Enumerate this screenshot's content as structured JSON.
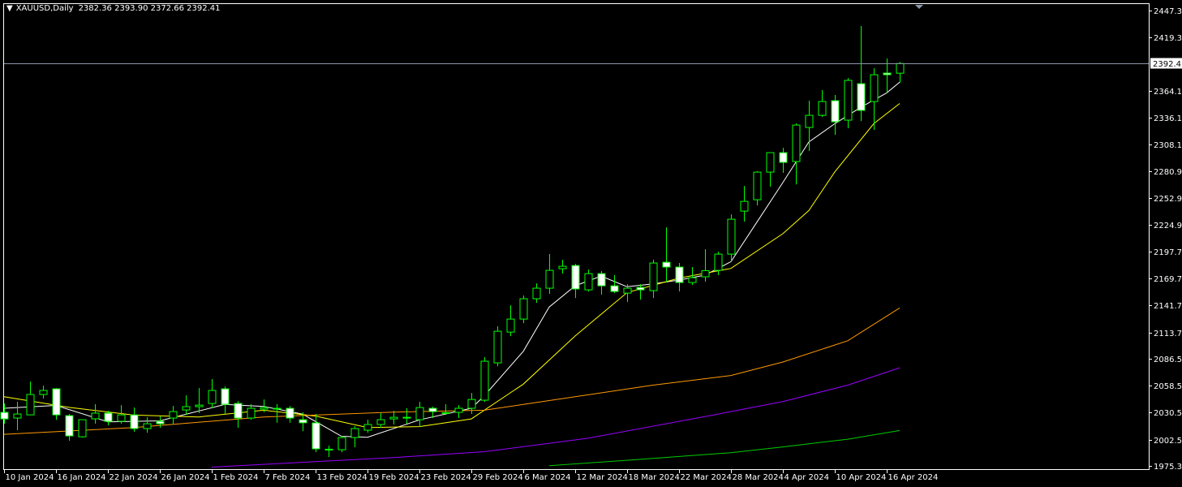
{
  "header": {
    "symbol": "XAUUSD,Daily",
    "ohlc": "2382.36 2393.90 2372.66 2392.41"
  },
  "chart_data": {
    "type": "candlestick",
    "title": "XAUUSD,Daily",
    "ylim": [
      1975.3,
      2447.3
    ],
    "y_ticks": [
      "2447.30",
      "2419.30",
      "2364.10",
      "2336.10",
      "2308.10",
      "2280.90",
      "2252.90",
      "2224.90",
      "2197.70",
      "2169.70",
      "2141.70",
      "2113.70",
      "2086.50",
      "2058.50",
      "2030.50",
      "2002.50",
      "1975.30"
    ],
    "y_tick_values": [
      2447.3,
      2419.3,
      2364.1,
      2336.1,
      2308.1,
      2280.9,
      2252.9,
      2224.9,
      2197.7,
      2169.7,
      2141.7,
      2113.7,
      2086.5,
      2058.5,
      2030.5,
      2002.5,
      1975.3
    ],
    "current_price": "2392.41",
    "x_labels": [
      "10 Jan 2024",
      "16 Jan 2024",
      "22 Jan 2024",
      "26 Jan 2024",
      "1 Feb 2024",
      "7 Feb 2024",
      "13 Feb 2024",
      "19 Feb 2024",
      "23 Feb 2024",
      "29 Feb 2024",
      "6 Mar 2024",
      "12 Mar 2024",
      "18 Mar 2024",
      "22 Mar 2024",
      "28 Mar 2024",
      "4 Apr 2024",
      "10 Apr 2024",
      "16 Apr 2024"
    ],
    "x_label_every_bars": 4,
    "ohlc": [
      [
        2030.8,
        2040.0,
        2019.0,
        2024.0
      ],
      [
        2024.9,
        2041.7,
        2012.3,
        2029.1
      ],
      [
        2028.2,
        2062.7,
        2028.0,
        2049.3
      ],
      [
        2049.3,
        2058.5,
        2045.1,
        2053.5
      ],
      [
        2055.2,
        2056.0,
        2023.2,
        2028.2
      ],
      [
        2027.4,
        2029.0,
        2001.4,
        2006.4
      ],
      [
        2005.5,
        2023.2,
        2004.7,
        2023.2
      ],
      [
        2024.1,
        2039.2,
        2019.0,
        2030.0
      ],
      [
        2030.0,
        2032.5,
        2017.3,
        2021.5
      ],
      [
        2021.5,
        2038.3,
        2019.0,
        2028.2
      ],
      [
        2028.2,
        2035.8,
        2010.6,
        2014.0
      ],
      [
        2014.0,
        2025.7,
        2009.7,
        2019.0
      ],
      [
        2021.5,
        2026.6,
        2014.8,
        2019.0
      ],
      [
        2024.9,
        2037.5,
        2018.2,
        2031.6
      ],
      [
        2033.3,
        2048.4,
        2028.2,
        2036.7
      ],
      [
        2036.7,
        2056.0,
        2030.0,
        2038.3
      ],
      [
        2040.0,
        2065.3,
        2035.0,
        2053.5
      ],
      [
        2055.2,
        2057.7,
        2029.1,
        2039.2
      ],
      [
        2040.0,
        2042.5,
        2014.8,
        2024.9
      ],
      [
        2024.9,
        2039.2,
        2023.2,
        2035.0
      ],
      [
        2034.2,
        2044.2,
        2030.8,
        2035.8
      ],
      [
        2035.0,
        2039.2,
        2020.0,
        2034.5
      ],
      [
        2035.0,
        2037.5,
        2020.0,
        2024.9
      ],
      [
        2023.2,
        2030.8,
        2011.4,
        2020.0
      ],
      [
        2019.9,
        2029.1,
        1989.5,
        1993.0
      ],
      [
        1992.0,
        1996.3,
        1984.5,
        1992.6
      ],
      [
        1992.1,
        2006.4,
        1989.5,
        2004.7
      ],
      [
        2004.7,
        2016.5,
        1994.6,
        2014.0
      ],
      [
        2012.3,
        2023.2,
        2009.7,
        2018.2
      ],
      [
        2018.2,
        2030.0,
        2014.8,
        2023.2
      ],
      [
        2024.0,
        2032.5,
        2018.2,
        2025.7
      ],
      [
        2025.7,
        2035.0,
        2019.0,
        2025.7
      ],
      [
        2023.2,
        2041.7,
        2015.6,
        2035.8
      ],
      [
        2035.0,
        2036.7,
        2024.9,
        2031.6
      ],
      [
        2029.9,
        2039.2,
        2028.2,
        2030.5
      ],
      [
        2030.8,
        2038.3,
        2024.9,
        2035.0
      ],
      [
        2035.0,
        2050.9,
        2029.1,
        2044.2
      ],
      [
        2043.4,
        2088.0,
        2041.7,
        2083.8
      ],
      [
        2082.1,
        2120.0,
        2078.7,
        2114.9
      ],
      [
        2114.0,
        2141.8,
        2109.8,
        2127.5
      ],
      [
        2127.5,
        2151.9,
        2123.3,
        2148.6
      ],
      [
        2148.6,
        2164.5,
        2144.4,
        2159.5
      ],
      [
        2159.5,
        2194.9,
        2153.6,
        2178.0
      ],
      [
        2179.7,
        2189.0,
        2174.6,
        2182.2
      ],
      [
        2183.0,
        2184.7,
        2149.4,
        2158.7
      ],
      [
        2157.8,
        2178.8,
        2156.1,
        2174.6
      ],
      [
        2174.6,
        2177.2,
        2152.8,
        2162.0
      ],
      [
        2162.0,
        2173.0,
        2154.4,
        2156.1
      ],
      [
        2154.4,
        2163.7,
        2145.2,
        2159.5
      ],
      [
        2160.3,
        2163.7,
        2147.7,
        2157.8
      ],
      [
        2157.0,
        2189.0,
        2149.4,
        2185.6
      ],
      [
        2186.4,
        2222.6,
        2166.0,
        2181.4
      ],
      [
        2181.4,
        2185.6,
        2156.1,
        2165.4
      ],
      [
        2165.4,
        2181.4,
        2162.9,
        2170.4
      ],
      [
        2171.3,
        2199.9,
        2166.2,
        2177.7
      ],
      [
        2178.0,
        2197.4,
        2173.0,
        2194.8
      ],
      [
        2194.8,
        2236.0,
        2187.3,
        2231.0
      ],
      [
        2239.4,
        2265.5,
        2228.5,
        2249.5
      ],
      [
        2251.2,
        2280.7,
        2245.3,
        2279.8
      ],
      [
        2279.8,
        2300.0,
        2264.7,
        2300.0
      ],
      [
        2300.0,
        2305.0,
        2279.0,
        2289.9
      ],
      [
        2290.8,
        2330.3,
        2267.0,
        2328.6
      ],
      [
        2326.1,
        2353.9,
        2301.7,
        2338.7
      ],
      [
        2338.7,
        2364.8,
        2337.0,
        2353.0
      ],
      [
        2353.9,
        2359.8,
        2318.5,
        2332.0
      ],
      [
        2333.7,
        2377.4,
        2325.3,
        2374.9
      ],
      [
        2371.5,
        2431.3,
        2332.8,
        2343.8
      ],
      [
        2353.0,
        2387.5,
        2323.6,
        2380.8
      ],
      [
        2382.5,
        2397.6,
        2361.4,
        2380.8
      ],
      [
        2382.36,
        2393.9,
        2372.66,
        2392.41
      ]
    ],
    "indicators": [
      {
        "color": "#ffffff",
        "points": [
          [
            0,
            2035
          ],
          [
            4,
            2038
          ],
          [
            8,
            2021
          ],
          [
            12,
            2022
          ],
          [
            17,
            2039
          ],
          [
            20,
            2037
          ],
          [
            23,
            2029
          ],
          [
            26,
            2006
          ],
          [
            28,
            2005
          ],
          [
            32,
            2023
          ],
          [
            36,
            2035
          ],
          [
            37,
            2048
          ],
          [
            40,
            2094
          ],
          [
            42,
            2140
          ],
          [
            44,
            2162
          ],
          [
            46,
            2172
          ],
          [
            48,
            2161
          ],
          [
            50,
            2164
          ],
          [
            52,
            2168
          ],
          [
            54,
            2173
          ],
          [
            56,
            2187
          ],
          [
            58,
            2228
          ],
          [
            60,
            2269
          ],
          [
            62,
            2311
          ],
          [
            64,
            2330
          ],
          [
            66,
            2347
          ],
          [
            68,
            2362
          ],
          [
            69,
            2373
          ]
        ]
      },
      {
        "color": "#ffff00",
        "points": [
          [
            0,
            2047
          ],
          [
            5,
            2036
          ],
          [
            10,
            2028
          ],
          [
            15,
            2026
          ],
          [
            20,
            2033
          ],
          [
            24,
            2027
          ],
          [
            28,
            2015
          ],
          [
            32,
            2016
          ],
          [
            36,
            2024
          ],
          [
            40,
            2060
          ],
          [
            44,
            2110
          ],
          [
            48,
            2155
          ],
          [
            52,
            2170
          ],
          [
            56,
            2180
          ],
          [
            60,
            2216
          ],
          [
            62,
            2240
          ],
          [
            64,
            2280
          ],
          [
            67,
            2330
          ],
          [
            69,
            2351
          ]
        ]
      },
      {
        "color": "#ff9900",
        "points": [
          [
            0,
            2008
          ],
          [
            10,
            2015
          ],
          [
            20,
            2026
          ],
          [
            30,
            2031
          ],
          [
            37,
            2033
          ],
          [
            40,
            2039
          ],
          [
            50,
            2059
          ],
          [
            56,
            2069
          ],
          [
            60,
            2083
          ],
          [
            65,
            2105
          ],
          [
            69,
            2139
          ]
        ]
      },
      {
        "color": "#9900ff",
        "points": [
          [
            16,
            1974
          ],
          [
            30,
            1984
          ],
          [
            37,
            1990
          ],
          [
            45,
            2004
          ],
          [
            55,
            2029
          ],
          [
            60,
            2042
          ],
          [
            65,
            2059
          ],
          [
            69,
            2077
          ]
        ]
      },
      {
        "color": "#00cc00",
        "points": [
          [
            42,
            1975.5
          ],
          [
            50,
            1983
          ],
          [
            56,
            1989
          ],
          [
            60,
            1995
          ],
          [
            65,
            2003
          ],
          [
            69,
            2012
          ]
        ]
      }
    ],
    "bull_color": "#00ff00",
    "bear_fill": "#ffffff",
    "background": "#000000",
    "grid": false
  }
}
